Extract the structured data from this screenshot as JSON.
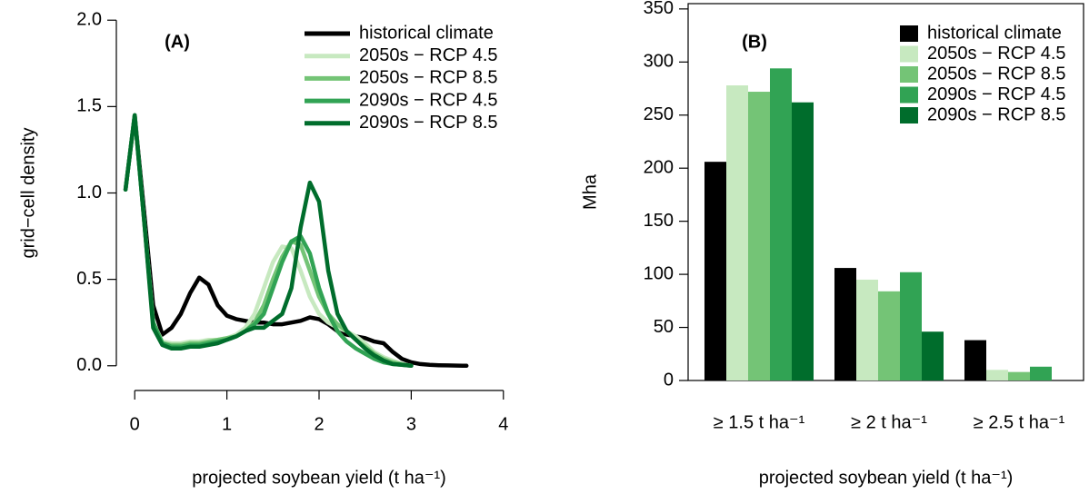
{
  "chart_data": [
    {
      "type": "line",
      "panel_label": "(A)",
      "xlabel": "projected soybean yield (t ha⁻¹)",
      "ylabel": "grid−cell density",
      "xlim": [
        -0.16,
        4.16
      ],
      "xticks": [
        0,
        1,
        2,
        3,
        4
      ],
      "ylim": [
        -0.08,
        2.08
      ],
      "yticks": [
        {
          "value": 0,
          "label": "0.0"
        },
        {
          "value": 0.5,
          "label": "0.5"
        },
        {
          "value": 1,
          "label": "1.0"
        },
        {
          "value": 1.5,
          "label": "1.5"
        },
        {
          "value": 2,
          "label": "2.0"
        }
      ],
      "legend": "top-right",
      "x": [
        -0.1,
        0,
        0.1,
        0.2,
        0.3,
        0.4,
        0.5,
        0.6,
        0.7,
        0.8,
        0.9,
        1.0,
        1.1,
        1.2,
        1.3,
        1.4,
        1.5,
        1.6,
        1.7,
        1.8,
        1.9,
        2.0,
        2.1,
        2.2,
        2.3,
        2.4,
        2.5,
        2.6,
        2.7,
        2.8,
        2.9,
        3.0,
        3.1,
        3.2,
        3.3,
        3.4,
        3.5,
        3.6
      ],
      "series": [
        {
          "name": "historical climate",
          "color": "#000000",
          "values": [
            1.02,
            1.45,
            0.9,
            0.35,
            0.18,
            0.22,
            0.3,
            0.42,
            0.51,
            0.47,
            0.35,
            0.29,
            0.27,
            0.26,
            0.25,
            0.25,
            0.24,
            0.24,
            0.25,
            0.26,
            0.28,
            0.27,
            0.24,
            0.2,
            0.18,
            0.17,
            0.16,
            0.14,
            0.13,
            0.08,
            0.04,
            0.02,
            0.01,
            0.005,
            0.003,
            0.002,
            0.001,
            0
          ]
        },
        {
          "name": "2050s − RCP 4.5",
          "color": "#c7e9c0",
          "values": [
            1.02,
            1.45,
            0.85,
            0.25,
            0.14,
            0.13,
            0.13,
            0.14,
            0.14,
            0.15,
            0.15,
            0.16,
            0.18,
            0.22,
            0.3,
            0.45,
            0.6,
            0.69,
            0.68,
            0.55,
            0.4,
            0.3,
            0.25,
            0.22,
            0.2,
            0.17,
            0.13,
            0.08,
            0.05,
            0.03,
            0.01,
            0,
            null,
            null,
            null,
            null,
            null,
            null
          ]
        },
        {
          "name": "2050s − RCP 8.5",
          "color": "#74c476",
          "values": [
            1.02,
            1.45,
            0.85,
            0.25,
            0.13,
            0.12,
            0.12,
            0.13,
            0.13,
            0.14,
            0.15,
            0.16,
            0.17,
            0.2,
            0.25,
            0.35,
            0.5,
            0.63,
            0.72,
            0.7,
            0.55,
            0.4,
            0.3,
            0.24,
            0.2,
            0.15,
            0.11,
            0.07,
            0.04,
            0.02,
            0.01,
            0,
            null,
            null,
            null,
            null,
            null,
            null
          ]
        },
        {
          "name": "2090s − RCP 4.5",
          "color": "#31a354",
          "values": [
            1.02,
            1.45,
            0.85,
            0.25,
            0.13,
            0.11,
            0.11,
            0.12,
            0.12,
            0.13,
            0.14,
            0.15,
            0.17,
            0.2,
            0.24,
            0.3,
            0.45,
            0.6,
            0.72,
            0.75,
            0.65,
            0.45,
            0.3,
            0.2,
            0.14,
            0.1,
            0.07,
            0.04,
            0.02,
            0.01,
            0.005,
            0,
            null,
            null,
            null,
            null,
            null,
            null
          ]
        },
        {
          "name": "2090s − RCP 8.5",
          "color": "#006d2c",
          "values": [
            1.02,
            1.45,
            0.85,
            0.22,
            0.12,
            0.1,
            0.1,
            0.11,
            0.11,
            0.12,
            0.13,
            0.15,
            0.17,
            0.2,
            0.22,
            0.22,
            0.26,
            0.3,
            0.45,
            0.8,
            1.06,
            0.95,
            0.55,
            0.3,
            0.2,
            0.15,
            0.1,
            0.06,
            0.03,
            0.01,
            0.005,
            0,
            null,
            null,
            null,
            null,
            null,
            null
          ]
        }
      ]
    },
    {
      "type": "bar",
      "panel_label": "(B)",
      "xlabel": "projected soybean yield (t ha⁻¹)",
      "ylabel": "Mha",
      "ylim": [
        0,
        355
      ],
      "yticks": [
        0,
        50,
        100,
        150,
        200,
        250,
        300,
        350
      ],
      "legend": "top-right",
      "categories": [
        "≥ 1.5 t ha⁻¹",
        "≥ 2 t ha⁻¹",
        "≥ 2.5 t ha⁻¹"
      ],
      "series": [
        {
          "name": "historical climate",
          "color": "#000000",
          "values": [
            206,
            106,
            38
          ]
        },
        {
          "name": "2050s − RCP 4.5",
          "color": "#c7e9c0",
          "values": [
            278,
            95,
            10
          ]
        },
        {
          "name": "2050s − RCP 8.5",
          "color": "#74c476",
          "values": [
            272,
            84,
            8
          ]
        },
        {
          "name": "2090s − RCP 4.5",
          "color": "#31a354",
          "values": [
            294,
            102,
            13
          ]
        },
        {
          "name": "2090s − RCP 8.5",
          "color": "#006d2c",
          "values": [
            262,
            46,
            0
          ]
        }
      ]
    }
  ]
}
